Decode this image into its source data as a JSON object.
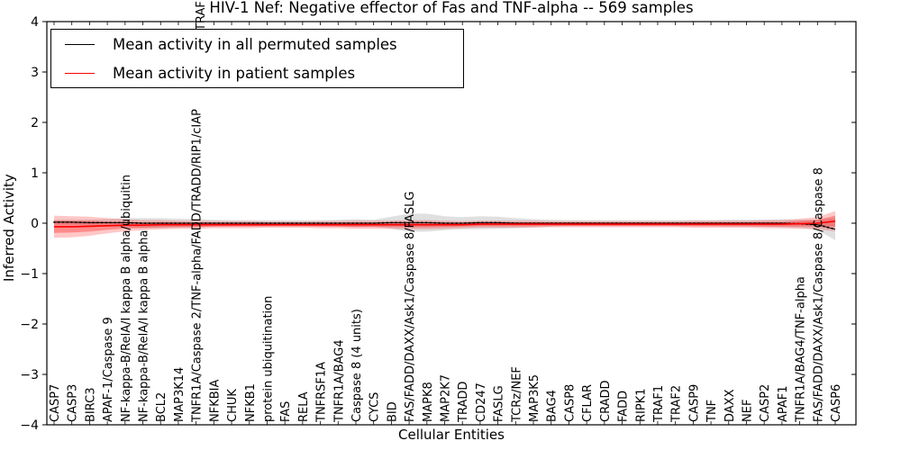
{
  "figure": {
    "title": "HIV-1 Nef: Negative effector of Fas and TNF-alpha -- 569 samples",
    "xlabel": "Cellular Entities",
    "ylabel": "Inferred Activity",
    "legend": [
      {
        "label": "Mean activity in all permuted samples",
        "color": "#000000"
      },
      {
        "label": "Mean activity in patient samples",
        "color": "#ff0000"
      }
    ],
    "clipped_label_fragment": "TRAF"
  },
  "chart_data": {
    "type": "line",
    "title": "HIV-1 Nef: Negative effector of Fas and TNF-alpha -- 569 samples",
    "xlabel": "Cellular Entities",
    "ylabel": "Inferred Activity",
    "ylim": [
      -4,
      4
    ],
    "ytick_values": [
      4,
      3,
      2,
      1,
      0,
      -1,
      -2,
      -3,
      -4
    ],
    "ytick_labels": [
      "4",
      "3",
      "2",
      "1",
      "0",
      "−1",
      "−2",
      "−3",
      "−4"
    ],
    "grid": false,
    "legend_position": "upper left",
    "zero_line": "dotted",
    "categories": [
      "CASP7",
      "CASP3",
      "BIRC3",
      "APAF-1/Caspase 9",
      "NF-kappa-B/RelA/I kappa B alpha/ubiquitin",
      "NF-kappa-B/RelA/I kappa B alpha",
      "BCL2",
      "MAP3K14",
      "TNFR1A/Caspase 2/TNF-alpha/FADD/TRADD/RIP1/cIAP",
      "NFKBIA",
      "CHUK",
      "NFKB1",
      "protein ubiquitination",
      "FAS",
      "RELA",
      "TNFRSF1A",
      "TNFR1A/BAG4",
      "Caspase 8 (4 units)",
      "CYCS",
      "BID",
      "FAS/FADD/DAXX/Ask1/Caspase 8/FASLG",
      "MAPK8",
      "MAP2K7",
      "TRADD",
      "CD247",
      "FASLG",
      "TCRz/NEF",
      "MAP3K5",
      "BAG4",
      "CASP8",
      "CFLAR",
      "CRADD",
      "FADD",
      "RIPK1",
      "TRAF1",
      "TRAF2",
      "CASP9",
      "TNF",
      "DAXX",
      "NEF",
      "CASP2",
      "APAF1",
      "TNFR1A/BAG4/TNF-alpha",
      "FAS/FADD/DAXX/Ask1/Caspase 8/Caspase 8",
      "CASP6"
    ],
    "series": [
      {
        "name": "Mean activity in all permuted samples",
        "color": "#000000",
        "band_opacity": 0.12,
        "mean": [
          0.02,
          0.02,
          0.01,
          0.01,
          0.01,
          0,
          0,
          0,
          0,
          0,
          0,
          0,
          0,
          0,
          0,
          0,
          0,
          0,
          0,
          0.01,
          0.01,
          0.01,
          0,
          0,
          0.01,
          0.01,
          0,
          0,
          0,
          0,
          0,
          0,
          0,
          0,
          0,
          0,
          0,
          0,
          0,
          0,
          0,
          0,
          -0.01,
          -0.03,
          -0.12
        ],
        "std": [
          0.05,
          0.05,
          0.06,
          0.07,
          0.09,
          0.1,
          0.1,
          0.09,
          0.08,
          0.07,
          0.06,
          0.06,
          0.06,
          0.06,
          0.06,
          0.06,
          0.07,
          0.08,
          0.07,
          0.12,
          0.18,
          0.18,
          0.14,
          0.12,
          0.13,
          0.12,
          0.1,
          0.08,
          0.07,
          0.06,
          0.06,
          0.06,
          0.06,
          0.06,
          0.06,
          0.06,
          0.06,
          0.06,
          0.07,
          0.07,
          0.07,
          0.08,
          0.08,
          0.1,
          0.22
        ]
      },
      {
        "name": "Mean activity in patient samples",
        "color": "#ff0000",
        "band_opacity": 0.22,
        "inner_band_opacity": 0.3,
        "inner_band_scale": 0.55,
        "mean": [
          -0.07,
          -0.07,
          -0.06,
          -0.05,
          -0.04,
          -0.04,
          -0.03,
          -0.03,
          -0.03,
          -0.03,
          -0.03,
          -0.03,
          -0.03,
          -0.03,
          -0.03,
          -0.03,
          -0.03,
          -0.03,
          -0.03,
          -0.03,
          -0.03,
          -0.03,
          -0.03,
          -0.03,
          -0.02,
          -0.02,
          -0.02,
          -0.02,
          -0.02,
          -0.02,
          -0.02,
          -0.02,
          -0.02,
          -0.02,
          -0.02,
          -0.02,
          -0.02,
          -0.02,
          -0.02,
          -0.02,
          -0.02,
          -0.02,
          -0.01,
          0,
          0.04
        ],
        "std": [
          0.22,
          0.21,
          0.19,
          0.15,
          0.12,
          0.1,
          0.09,
          0.08,
          0.08,
          0.07,
          0.07,
          0.07,
          0.06,
          0.06,
          0.06,
          0.07,
          0.07,
          0.08,
          0.08,
          0.08,
          0.09,
          0.09,
          0.08,
          0.07,
          0.07,
          0.07,
          0.07,
          0.07,
          0.06,
          0.06,
          0.06,
          0.06,
          0.06,
          0.06,
          0.06,
          0.06,
          0.07,
          0.07,
          0.07,
          0.07,
          0.08,
          0.08,
          0.1,
          0.12,
          0.2
        ]
      }
    ]
  }
}
